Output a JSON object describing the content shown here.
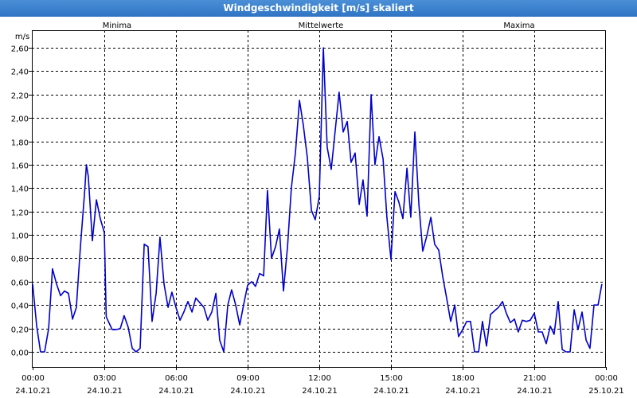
{
  "window": {
    "title": "Windgeschwindigkeit [m/s] skaliert"
  },
  "legend": {
    "min_label": "Minima",
    "mean_label": "Mittelwerte",
    "max_label": "Maxima"
  },
  "colors": {
    "minima": "#00aa00",
    "mittelwerte": "#0000cc",
    "maxima": "#cc0000",
    "series": "#0000cc"
  },
  "chart_data": {
    "type": "line",
    "ylabel": "m/s",
    "ylim": [
      -0.1,
      2.7
    ],
    "yticks": [
      "0,00",
      "0,20",
      "0,40",
      "0,60",
      "0,80",
      "1,00",
      "1,20",
      "1,40",
      "1,60",
      "1,80",
      "2,00",
      "2,20",
      "2,40",
      "2,60"
    ],
    "xlim_hours": [
      0,
      24
    ],
    "xticks": [
      {
        "time": "00:00",
        "date": "24.10.21"
      },
      {
        "time": "03:00",
        "date": "24.10.21"
      },
      {
        "time": "06:00",
        "date": "24.10.21"
      },
      {
        "time": "09:00",
        "date": "24.10.21"
      },
      {
        "time": "12:00",
        "date": "24.10.21"
      },
      {
        "time": "15:00",
        "date": "24.10.21"
      },
      {
        "time": "18:00",
        "date": "24.10.21"
      },
      {
        "time": "21:00",
        "date": "24.10.21"
      },
      {
        "time": "00:00",
        "date": "25.10.21"
      }
    ],
    "grid": true,
    "series": [
      {
        "name": "Mittelwerte",
        "points": [
          [
            0.0,
            0.58
          ],
          [
            0.17,
            0.22
          ],
          [
            0.33,
            0.0
          ],
          [
            0.5,
            0.0
          ],
          [
            0.67,
            0.2
          ],
          [
            0.83,
            0.71
          ],
          [
            1.0,
            0.58
          ],
          [
            1.17,
            0.48
          ],
          [
            1.33,
            0.52
          ],
          [
            1.5,
            0.5
          ],
          [
            1.67,
            0.28
          ],
          [
            1.83,
            0.38
          ],
          [
            2.0,
            0.9
          ],
          [
            2.17,
            1.35
          ],
          [
            2.25,
            1.6
          ],
          [
            2.33,
            1.5
          ],
          [
            2.5,
            0.95
          ],
          [
            2.67,
            1.3
          ],
          [
            2.83,
            1.14
          ],
          [
            3.0,
            1.02
          ],
          [
            3.08,
            0.3
          ],
          [
            3.17,
            0.26
          ],
          [
            3.33,
            0.19
          ],
          [
            3.5,
            0.19
          ],
          [
            3.67,
            0.2
          ],
          [
            3.83,
            0.31
          ],
          [
            4.0,
            0.21
          ],
          [
            4.17,
            0.03
          ],
          [
            4.33,
            0.0
          ],
          [
            4.5,
            0.03
          ],
          [
            4.67,
            0.92
          ],
          [
            4.83,
            0.9
          ],
          [
            5.0,
            0.26
          ],
          [
            5.17,
            0.5
          ],
          [
            5.33,
            0.98
          ],
          [
            5.5,
            0.58
          ],
          [
            5.67,
            0.38
          ],
          [
            5.83,
            0.51
          ],
          [
            6.0,
            0.38
          ],
          [
            6.17,
            0.27
          ],
          [
            6.33,
            0.34
          ],
          [
            6.5,
            0.43
          ],
          [
            6.67,
            0.34
          ],
          [
            6.83,
            0.46
          ],
          [
            7.0,
            0.42
          ],
          [
            7.17,
            0.38
          ],
          [
            7.33,
            0.27
          ],
          [
            7.5,
            0.34
          ],
          [
            7.67,
            0.5
          ],
          [
            7.83,
            0.1
          ],
          [
            8.0,
            0.0
          ],
          [
            8.17,
            0.4
          ],
          [
            8.33,
            0.53
          ],
          [
            8.5,
            0.4
          ],
          [
            8.67,
            0.23
          ],
          [
            8.83,
            0.4
          ],
          [
            9.0,
            0.57
          ],
          [
            9.17,
            0.6
          ],
          [
            9.33,
            0.56
          ],
          [
            9.5,
            0.67
          ],
          [
            9.67,
            0.65
          ],
          [
            9.83,
            1.38
          ],
          [
            10.0,
            0.8
          ],
          [
            10.17,
            0.9
          ],
          [
            10.33,
            1.05
          ],
          [
            10.5,
            0.52
          ],
          [
            10.67,
            0.9
          ],
          [
            10.83,
            1.4
          ],
          [
            11.0,
            1.7
          ],
          [
            11.17,
            2.15
          ],
          [
            11.33,
            1.94
          ],
          [
            11.5,
            1.66
          ],
          [
            11.67,
            1.21
          ],
          [
            11.83,
            1.13
          ],
          [
            12.0,
            1.33
          ],
          [
            12.17,
            2.6
          ],
          [
            12.33,
            1.75
          ],
          [
            12.5,
            1.56
          ],
          [
            12.67,
            1.9
          ],
          [
            12.83,
            2.22
          ],
          [
            13.0,
            1.88
          ],
          [
            13.17,
            1.97
          ],
          [
            13.33,
            1.62
          ],
          [
            13.5,
            1.7
          ],
          [
            13.67,
            1.26
          ],
          [
            13.83,
            1.47
          ],
          [
            14.0,
            1.16
          ],
          [
            14.17,
            2.2
          ],
          [
            14.33,
            1.6
          ],
          [
            14.5,
            1.84
          ],
          [
            14.67,
            1.65
          ],
          [
            14.83,
            1.15
          ],
          [
            15.0,
            0.79
          ],
          [
            15.17,
            1.37
          ],
          [
            15.33,
            1.28
          ],
          [
            15.5,
            1.14
          ],
          [
            15.67,
            1.57
          ],
          [
            15.83,
            1.15
          ],
          [
            16.0,
            1.88
          ],
          [
            16.17,
            1.26
          ],
          [
            16.33,
            0.86
          ],
          [
            16.5,
            0.99
          ],
          [
            16.67,
            1.15
          ],
          [
            16.83,
            0.92
          ],
          [
            17.0,
            0.87
          ],
          [
            17.17,
            0.64
          ],
          [
            17.33,
            0.46
          ],
          [
            17.5,
            0.26
          ],
          [
            17.67,
            0.4
          ],
          [
            17.83,
            0.13
          ],
          [
            18.0,
            0.19
          ],
          [
            18.17,
            0.26
          ],
          [
            18.33,
            0.26
          ],
          [
            18.5,
            0.0
          ],
          [
            18.67,
            0.0
          ],
          [
            18.83,
            0.26
          ],
          [
            19.0,
            0.05
          ],
          [
            19.17,
            0.32
          ],
          [
            19.33,
            0.35
          ],
          [
            19.5,
            0.38
          ],
          [
            19.67,
            0.43
          ],
          [
            19.83,
            0.33
          ],
          [
            20.0,
            0.25
          ],
          [
            20.17,
            0.28
          ],
          [
            20.33,
            0.17
          ],
          [
            20.5,
            0.27
          ],
          [
            20.67,
            0.26
          ],
          [
            20.83,
            0.27
          ],
          [
            21.0,
            0.33
          ],
          [
            21.17,
            0.17
          ],
          [
            21.33,
            0.17
          ],
          [
            21.5,
            0.07
          ],
          [
            21.67,
            0.22
          ],
          [
            21.83,
            0.15
          ],
          [
            22.0,
            0.43
          ],
          [
            22.17,
            0.02
          ],
          [
            22.33,
            0.0
          ],
          [
            22.5,
            0.0
          ],
          [
            22.67,
            0.36
          ],
          [
            22.83,
            0.19
          ],
          [
            23.0,
            0.34
          ],
          [
            23.17,
            0.1
          ],
          [
            23.33,
            0.03
          ],
          [
            23.5,
            0.4
          ],
          [
            23.67,
            0.4
          ],
          [
            23.83,
            0.58
          ]
        ]
      }
    ]
  }
}
